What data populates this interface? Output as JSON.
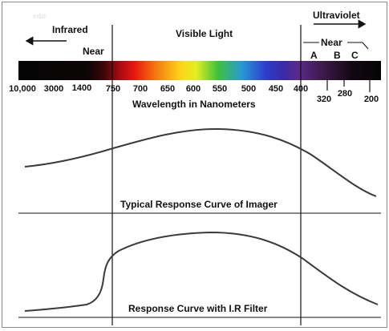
{
  "watermark": "edo",
  "labels": {
    "infrared": "Infrared",
    "ultraviolet": "Ultraviolet",
    "visible_light": "Visible Light",
    "near_left": "Near",
    "near_right": "Near",
    "band_a": "A",
    "band_b": "B",
    "band_c": "C",
    "axis_title": "Wavelength in Nanometers",
    "curve1_caption": "Typical Response Curve of Imager",
    "curve2_caption": "Response Curve with I.R Filter"
  },
  "tick_labels": {
    "t10000": "10,000",
    "t3000": "3000",
    "t1400": "1400",
    "t750": "750",
    "t700": "700",
    "t650": "650",
    "t600": "600",
    "t550": "550",
    "t500": "500",
    "t450": "450",
    "t400": "400",
    "t320": "320",
    "t280": "280",
    "t200": "200"
  },
  "colors": {
    "ink": "#111111",
    "spectrum_dark": "#0a0a0a",
    "frame": "#8a8a8a"
  }
}
